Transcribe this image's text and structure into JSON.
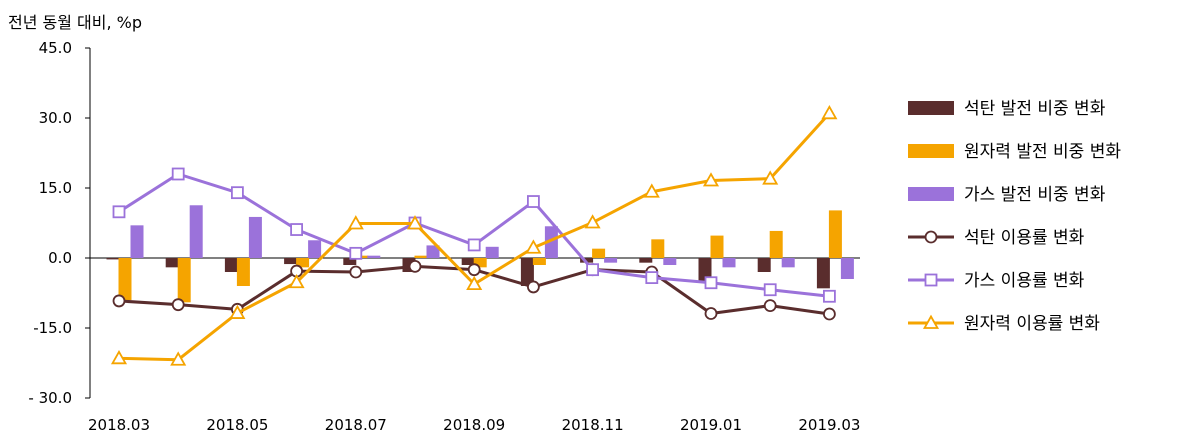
{
  "chart_data": {
    "type": "bar+line",
    "unit_label": "전년 동월 대비, %p",
    "x": [
      "2018.03",
      "2018.04",
      "2018.05",
      "2018.06",
      "2018.07",
      "2018.08",
      "2018.09",
      "2018.10",
      "2018.11",
      "2018.12",
      "2019.01",
      "2019.02",
      "2019.03"
    ],
    "x_tick_labels": [
      "2018.03",
      "2018.05",
      "2018.07",
      "2018.09",
      "2018.11",
      "2019.01",
      "2019.03"
    ],
    "y_ticks": [
      "45.0",
      "30.0",
      "15.0",
      "0.0",
      "-15.0",
      "- 30.0"
    ],
    "ylim": [
      -30,
      45
    ],
    "legend_position": "right",
    "bar_series": [
      {
        "name": "석탄 발전 비중 변화",
        "color": "#5a2d2d",
        "values": [
          -0.3,
          -2.0,
          -3.0,
          -1.3,
          -1.5,
          -3.0,
          -1.5,
          -6.0,
          -1.0,
          -1.0,
          -5.0,
          -3.0,
          -6.5
        ]
      },
      {
        "name": "원자력 발전 비중 변화",
        "color": "#f5a400",
        "values": [
          -9.0,
          -9.5,
          -6.0,
          -2.0,
          0.5,
          0.5,
          -2.0,
          -1.5,
          2.0,
          4.0,
          4.8,
          5.8,
          10.2
        ]
      },
      {
        "name": "가스 발전 비중 변화",
        "color": "#9b72da",
        "values": [
          7.0,
          11.3,
          8.8,
          3.8,
          0.5,
          2.7,
          2.4,
          6.8,
          -1.0,
          -1.5,
          -2.0,
          -2.0,
          -4.5
        ]
      }
    ],
    "line_series": [
      {
        "name": "석탄 이용률 변화",
        "color": "#5a2d2d",
        "marker": "circle",
        "values": [
          -9.2,
          -10.0,
          -11.0,
          -2.8,
          -3.0,
          -1.8,
          -2.5,
          -6.2,
          -2.5,
          -3.0,
          -11.9,
          -10.2,
          -12.0
        ]
      },
      {
        "name": "가스 이용률 변화",
        "color": "#9b72da",
        "marker": "square",
        "values": [
          9.9,
          18.0,
          14.0,
          6.1,
          1.0,
          7.5,
          2.8,
          12.1,
          -2.5,
          -4.2,
          -5.3,
          -6.8,
          -8.2
        ]
      },
      {
        "name": "원자력 이용률 변화",
        "color": "#f5a400",
        "marker": "triangle",
        "values": [
          -21.5,
          -21.8,
          -11.8,
          -5.2,
          7.4,
          7.4,
          -5.6,
          2.2,
          7.6,
          14.2,
          16.6,
          17.0,
          31.0
        ]
      }
    ]
  }
}
